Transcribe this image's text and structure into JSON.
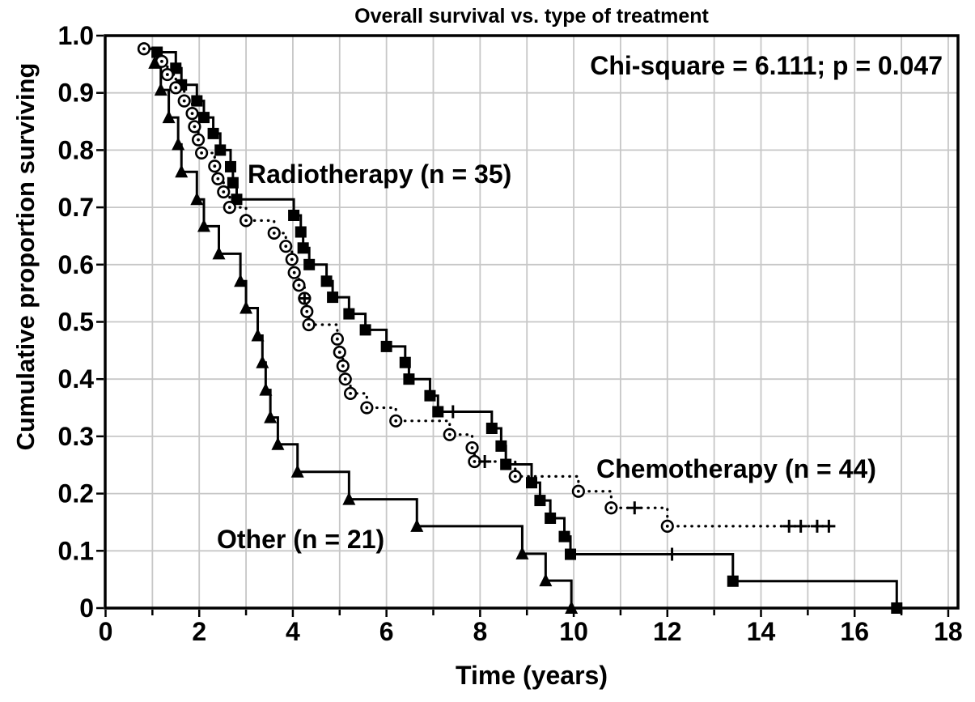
{
  "chart_data": {
    "type": "line",
    "subtype": "kaplan-meier-step-survival",
    "title": "Overall survival vs. type of treatment",
    "annotation": "Chi-square = 6.111; p = 0.047",
    "xlabel": "Time (years)",
    "ylabel": "Cumulative proportion surviving",
    "xlim": [
      0,
      18.2
    ],
    "ylim": [
      0,
      1.0
    ],
    "xtick_major_values": [
      0,
      2,
      4,
      6,
      8,
      10,
      12,
      14,
      16,
      18
    ],
    "xtick_major_labels": [
      "0",
      "2",
      "4",
      "6",
      "8",
      "10",
      "12",
      "14",
      "16",
      "18"
    ],
    "xtick_minor_values": [
      1,
      3,
      5,
      7,
      9,
      11,
      13,
      15,
      17
    ],
    "ytick_values": [
      0,
      0.1,
      0.2,
      0.3,
      0.4,
      0.5,
      0.6,
      0.7,
      0.8,
      0.9,
      1.0
    ],
    "ytick_labels": [
      "0",
      "0.1",
      "0.2",
      "0.3",
      "0.4",
      "0.5",
      "0.6",
      "0.7",
      "0.8",
      "0.9",
      "1.0"
    ],
    "grid": {
      "x_step_years": 1,
      "y_step": 0.1,
      "on": true,
      "color": "#c7c7c7"
    },
    "colors": {
      "foreground": "#000000",
      "background": "#ffffff"
    },
    "legend_position": "labels-on-plot",
    "series": [
      {
        "name": "Radiotherapy (n = 35)",
        "n": 35,
        "marker": "filled-square",
        "line_style": "solid",
        "points": [
          [
            1.1,
            0.971
          ],
          [
            1.5,
            0.943
          ],
          [
            1.62,
            0.914
          ],
          [
            1.95,
            0.886
          ],
          [
            2.1,
            0.857
          ],
          [
            2.3,
            0.829
          ],
          [
            2.45,
            0.8
          ],
          [
            2.67,
            0.771
          ],
          [
            2.72,
            0.743
          ],
          [
            2.8,
            0.714
          ],
          [
            4.02,
            0.686
          ],
          [
            4.17,
            0.657
          ],
          [
            4.22,
            0.629
          ],
          [
            4.35,
            0.6
          ],
          [
            4.72,
            0.571
          ],
          [
            4.85,
            0.543
          ],
          [
            5.2,
            0.514
          ],
          [
            5.55,
            0.486
          ],
          [
            6.0,
            0.457
          ],
          [
            6.4,
            0.429
          ],
          [
            6.48,
            0.4
          ],
          [
            6.93,
            0.371
          ],
          [
            7.1,
            0.343
          ],
          [
            8.25,
            0.314
          ],
          [
            8.45,
            0.283
          ],
          [
            8.55,
            0.251
          ],
          [
            9.1,
            0.219
          ],
          [
            9.28,
            0.188
          ],
          [
            9.5,
            0.157
          ],
          [
            9.8,
            0.125
          ],
          [
            9.93,
            0.094
          ],
          [
            13.4,
            0.047
          ],
          [
            16.9,
            0.0
          ]
        ],
        "censored": [
          [
            7.42,
            0.343
          ],
          [
            12.1,
            0.094
          ]
        ],
        "end_time": 16.9
      },
      {
        "name": "Chemotherapy (n = 44)",
        "n": 44,
        "marker": "open-circle-dot",
        "line_style": "dotted",
        "points": [
          [
            0.82,
            0.977
          ],
          [
            1.2,
            0.955
          ],
          [
            1.32,
            0.932
          ],
          [
            1.5,
            0.909
          ],
          [
            1.68,
            0.886
          ],
          [
            1.85,
            0.864
          ],
          [
            1.9,
            0.841
          ],
          [
            1.98,
            0.818
          ],
          [
            2.05,
            0.795
          ],
          [
            2.33,
            0.772
          ],
          [
            2.4,
            0.75
          ],
          [
            2.52,
            0.727
          ],
          [
            2.65,
            0.7
          ],
          [
            3.0,
            0.677
          ],
          [
            3.6,
            0.655
          ],
          [
            3.85,
            0.632
          ],
          [
            3.98,
            0.609
          ],
          [
            4.03,
            0.586
          ],
          [
            4.13,
            0.564
          ],
          [
            4.25,
            0.541
          ],
          [
            4.3,
            0.518
          ],
          [
            4.34,
            0.495
          ],
          [
            4.95,
            0.47
          ],
          [
            5.0,
            0.447
          ],
          [
            5.07,
            0.423
          ],
          [
            5.12,
            0.4
          ],
          [
            5.23,
            0.375
          ],
          [
            5.58,
            0.35
          ],
          [
            6.2,
            0.327
          ],
          [
            7.35,
            0.303
          ],
          [
            7.83,
            0.28
          ],
          [
            7.88,
            0.256
          ],
          [
            8.75,
            0.23
          ],
          [
            10.1,
            0.204
          ],
          [
            10.8,
            0.175
          ],
          [
            12.0,
            0.143
          ]
        ],
        "censored": [
          [
            4.25,
            0.541
          ],
          [
            8.1,
            0.256
          ],
          [
            11.3,
            0.175
          ],
          [
            14.6,
            0.143
          ],
          [
            14.85,
            0.143
          ],
          [
            15.2,
            0.143
          ],
          [
            15.45,
            0.143
          ]
        ],
        "end_time": 15.6
      },
      {
        "name": "Other (n = 21)",
        "n": 21,
        "marker": "filled-triangle",
        "line_style": "solid",
        "points": [
          [
            1.05,
            0.952
          ],
          [
            1.18,
            0.905
          ],
          [
            1.35,
            0.857
          ],
          [
            1.55,
            0.81
          ],
          [
            1.62,
            0.762
          ],
          [
            1.95,
            0.714
          ],
          [
            2.1,
            0.667
          ],
          [
            2.42,
            0.619
          ],
          [
            2.88,
            0.571
          ],
          [
            3.0,
            0.524
          ],
          [
            3.25,
            0.476
          ],
          [
            3.35,
            0.429
          ],
          [
            3.42,
            0.381
          ],
          [
            3.52,
            0.333
          ],
          [
            3.68,
            0.286
          ],
          [
            4.1,
            0.238
          ],
          [
            5.2,
            0.19
          ],
          [
            6.65,
            0.143
          ],
          [
            8.9,
            0.095
          ],
          [
            9.4,
            0.048
          ],
          [
            9.95,
            0.0
          ]
        ],
        "censored": [],
        "end_time": 9.95
      }
    ]
  }
}
